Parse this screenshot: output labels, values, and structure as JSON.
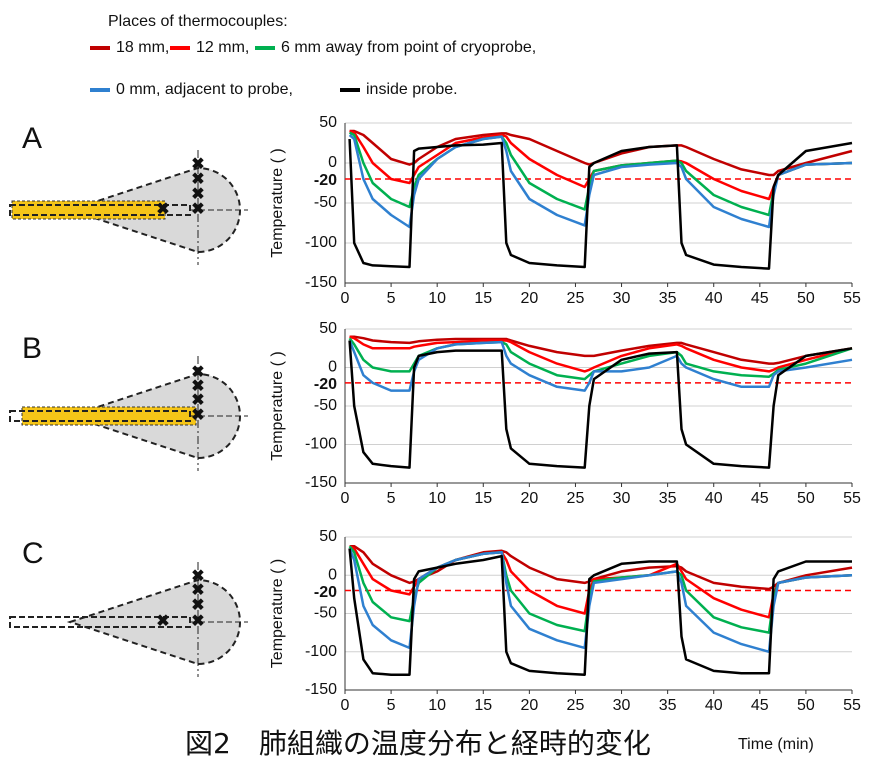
{
  "legend": {
    "title": "Places of thermocouples:"
  },
  "panel_labels": [
    "A",
    "B",
    "C"
  ],
  "caption": "図2　肺組織の温度分布と経時的変化",
  "chart_data": [
    {
      "type": "line",
      "ylabel": "Temperature (  )",
      "x": [
        0.5,
        1,
        2,
        3,
        5,
        7,
        7.5,
        8,
        10,
        12,
        15,
        17,
        17.5,
        18,
        20,
        23,
        26,
        26.5,
        27,
        30,
        33,
        36,
        36.5,
        37,
        40,
        43,
        46,
        46.5,
        47,
        50,
        55
      ],
      "xlim": [
        0,
        55
      ],
      "xticks": [
        0,
        5,
        10,
        15,
        20,
        25,
        30,
        35,
        40,
        45,
        50,
        55
      ],
      "ylim": [
        -150,
        50
      ],
      "yticks": [
        -150,
        -100,
        -50,
        0,
        50
      ],
      "grid": true,
      "reference_line": {
        "value": -20,
        "color": "#ff0000"
      },
      "series": [
        {
          "name": "18 mm,",
          "color": "#c00000",
          "values": [
            40,
            40,
            35,
            25,
            5,
            -2,
            0,
            5,
            20,
            30,
            35,
            37,
            37,
            35,
            30,
            15,
            0,
            -2,
            0,
            12,
            20,
            22,
            22,
            20,
            5,
            -8,
            -15,
            -15,
            -10,
            0,
            15
          ]
        },
        {
          "name": "12 mm,",
          "color": "#ff0000",
          "values": [
            40,
            38,
            20,
            0,
            -20,
            -25,
            -15,
            -5,
            10,
            25,
            32,
            35,
            33,
            25,
            5,
            -15,
            -30,
            -20,
            -10,
            -3,
            0,
            3,
            2,
            0,
            -20,
            -35,
            -45,
            -30,
            -15,
            -2,
            0
          ]
        },
        {
          "name": "6 mm away from point of cryoprobe,",
          "color": "#00b050",
          "values": [
            38,
            35,
            0,
            -25,
            -45,
            -55,
            -30,
            -15,
            5,
            20,
            30,
            33,
            25,
            10,
            -25,
            -45,
            -58,
            -30,
            -10,
            -3,
            0,
            3,
            0,
            -10,
            -40,
            -55,
            -65,
            -35,
            -15,
            -2,
            0
          ]
        },
        {
          "name": "0 mm, adjacent to probe,",
          "color": "#2f80d0",
          "values": [
            35,
            30,
            -20,
            -45,
            -65,
            -80,
            -40,
            -20,
            5,
            20,
            30,
            33,
            15,
            -10,
            -45,
            -65,
            -78,
            -40,
            -15,
            -5,
            -2,
            0,
            -5,
            -20,
            -55,
            -70,
            -80,
            -40,
            -15,
            -2,
            0
          ]
        },
        {
          "name": "inside probe.",
          "color": "#000000",
          "values": [
            30,
            -100,
            -125,
            -128,
            -129,
            -130,
            15,
            18,
            20,
            22,
            23,
            25,
            -100,
            -115,
            -125,
            -128,
            -130,
            -5,
            0,
            15,
            20,
            22,
            -100,
            -115,
            -127,
            -130,
            -132,
            -30,
            -15,
            15,
            25
          ]
        }
      ]
    },
    {
      "type": "line",
      "ylabel": "Temperature (  )",
      "x": [
        0.5,
        1,
        2,
        3,
        5,
        7,
        7.5,
        8,
        10,
        12,
        15,
        17,
        17.5,
        18,
        20,
        23,
        26,
        26.5,
        27,
        30,
        33,
        36,
        36.5,
        37,
        40,
        43,
        46,
        46.5,
        47,
        50,
        55
      ],
      "xlim": [
        0,
        55
      ],
      "xticks": [
        0,
        5,
        10,
        15,
        20,
        25,
        30,
        35,
        40,
        45,
        50,
        55
      ],
      "ylim": [
        -150,
        50
      ],
      "yticks": [
        -150,
        -100,
        -50,
        0,
        50
      ],
      "grid": true,
      "reference_line": {
        "value": -20,
        "color": "#ff0000"
      },
      "series": [
        {
          "color": "#c00000",
          "values": [
            40,
            40,
            38,
            35,
            33,
            32,
            33,
            34,
            36,
            37,
            37,
            37,
            37,
            35,
            28,
            20,
            15,
            15,
            15,
            22,
            28,
            32,
            32,
            30,
            20,
            10,
            5,
            5,
            6,
            15,
            25
          ]
        },
        {
          "color": "#ff0000",
          "values": [
            40,
            38,
            30,
            25,
            25,
            25,
            27,
            28,
            32,
            33,
            35,
            35,
            35,
            33,
            20,
            5,
            -5,
            -3,
            0,
            15,
            25,
            30,
            28,
            25,
            10,
            0,
            -5,
            -3,
            0,
            10,
            25
          ]
        },
        {
          "color": "#00b050",
          "values": [
            38,
            30,
            10,
            0,
            -5,
            -5,
            5,
            15,
            25,
            30,
            32,
            33,
            30,
            20,
            5,
            -10,
            -15,
            -10,
            -5,
            5,
            15,
            20,
            15,
            5,
            -5,
            -10,
            -12,
            -8,
            -3,
            5,
            25
          ]
        },
        {
          "color": "#2f80d0",
          "values": [
            35,
            20,
            -10,
            -20,
            -30,
            -30,
            -5,
            10,
            25,
            30,
            32,
            33,
            15,
            5,
            -10,
            -25,
            -30,
            -20,
            -5,
            -5,
            0,
            15,
            5,
            0,
            -15,
            -25,
            -25,
            -10,
            -5,
            0,
            10
          ]
        },
        {
          "color": "#000000",
          "values": [
            35,
            -50,
            -110,
            -125,
            -128,
            -130,
            0,
            15,
            20,
            22,
            22,
            22,
            -80,
            -105,
            -125,
            -128,
            -130,
            -50,
            -15,
            10,
            18,
            20,
            -80,
            -100,
            -125,
            -128,
            -130,
            -50,
            -10,
            15,
            25
          ]
        }
      ]
    },
    {
      "type": "line",
      "ylabel": "Temperature (  )",
      "xlabel": "Time (min)",
      "x": [
        0.5,
        1,
        2,
        3,
        5,
        7,
        7.5,
        8,
        10,
        12,
        15,
        17,
        17.5,
        18,
        20,
        23,
        26,
        26.5,
        27,
        30,
        33,
        36,
        36.5,
        37,
        40,
        43,
        46,
        46.5,
        47,
        50,
        55
      ],
      "xlim": [
        0,
        55
      ],
      "xticks": [
        0,
        5,
        10,
        15,
        20,
        25,
        30,
        35,
        40,
        45,
        50,
        55
      ],
      "ylim": [
        -150,
        50
      ],
      "yticks": [
        -150,
        -100,
        -50,
        0,
        50
      ],
      "grid": true,
      "reference_line": {
        "value": -20,
        "color": "#ff0000"
      },
      "series": [
        {
          "color": "#c00000",
          "values": [
            38,
            38,
            30,
            15,
            0,
            -10,
            -8,
            -5,
            5,
            20,
            30,
            32,
            30,
            25,
            10,
            -5,
            -10,
            -8,
            -5,
            5,
            10,
            12,
            10,
            5,
            -10,
            -15,
            -18,
            -15,
            -10,
            0,
            10
          ]
        },
        {
          "color": "#ff0000",
          "values": [
            38,
            35,
            15,
            -5,
            -20,
            -25,
            -15,
            -5,
            10,
            20,
            28,
            30,
            20,
            5,
            -20,
            -40,
            -50,
            -20,
            -5,
            -3,
            0,
            15,
            5,
            -5,
            -30,
            -45,
            -55,
            -25,
            -10,
            -3,
            0
          ]
        },
        {
          "color": "#00b050",
          "values": [
            38,
            30,
            -10,
            -35,
            -55,
            -60,
            -30,
            -10,
            10,
            20,
            28,
            30,
            0,
            -20,
            -50,
            -65,
            -73,
            -30,
            -8,
            -3,
            0,
            5,
            0,
            -20,
            -55,
            -68,
            -75,
            -30,
            -10,
            -3,
            0
          ]
        },
        {
          "color": "#2f80d0",
          "values": [
            35,
            20,
            -40,
            -65,
            -85,
            -95,
            -40,
            -5,
            10,
            20,
            28,
            30,
            -10,
            -40,
            -70,
            -85,
            -95,
            -40,
            -10,
            -5,
            0,
            5,
            -10,
            -40,
            -75,
            -90,
            -100,
            -40,
            -10,
            -3,
            0
          ]
        },
        {
          "color": "#000000",
          "values": [
            35,
            -30,
            -110,
            -128,
            -130,
            -130,
            -5,
            5,
            10,
            15,
            20,
            25,
            -100,
            -115,
            -125,
            -128,
            -130,
            -5,
            0,
            15,
            18,
            18,
            -80,
            -110,
            -125,
            -128,
            -128,
            -5,
            5,
            18,
            18
          ]
        }
      ]
    }
  ]
}
